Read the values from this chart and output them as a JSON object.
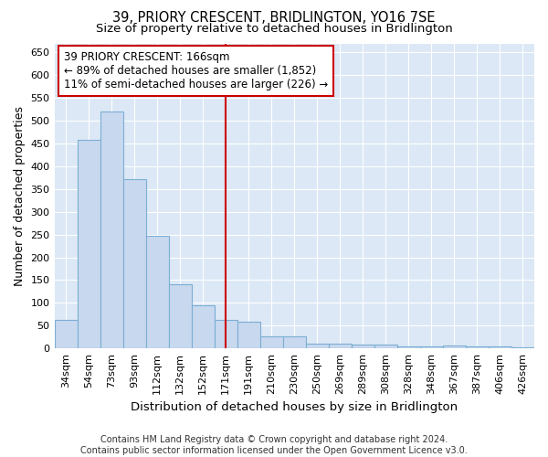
{
  "title": "39, PRIORY CRESCENT, BRIDLINGTON, YO16 7SE",
  "subtitle": "Size of property relative to detached houses in Bridlington",
  "xlabel": "Distribution of detached houses by size in Bridlington",
  "ylabel": "Number of detached properties",
  "categories": [
    "34sqm",
    "54sqm",
    "73sqm",
    "93sqm",
    "112sqm",
    "132sqm",
    "152sqm",
    "171sqm",
    "191sqm",
    "210sqm",
    "230sqm",
    "250sqm",
    "269sqm",
    "289sqm",
    "308sqm",
    "328sqm",
    "348sqm",
    "367sqm",
    "387sqm",
    "406sqm",
    "426sqm"
  ],
  "values": [
    63,
    458,
    520,
    371,
    248,
    140,
    94,
    62,
    58,
    27,
    27,
    11,
    11,
    8,
    8,
    5,
    4,
    7,
    4,
    4,
    3
  ],
  "bar_color": "#c8d8ee",
  "bar_edge_color": "#7bafd4",
  "vline_pos": 7.0,
  "vline_color": "#cc0000",
  "annotation_text": "39 PRIORY CRESCENT: 166sqm\n← 89% of detached houses are smaller (1,852)\n11% of semi-detached houses are larger (226) →",
  "annotation_box_color": "#ffffff",
  "annotation_box_edge": "#cc0000",
  "ylim": [
    0,
    670
  ],
  "yticks": [
    0,
    50,
    100,
    150,
    200,
    250,
    300,
    350,
    400,
    450,
    500,
    550,
    600,
    650
  ],
  "footer": "Contains HM Land Registry data © Crown copyright and database right 2024.\nContains public sector information licensed under the Open Government Licence v3.0.",
  "bg_color": "#ffffff",
  "plot_bg_color": "#dce8f5",
  "title_fontsize": 10.5,
  "subtitle_fontsize": 9.5,
  "tick_fontsize": 8,
  "ylabel_fontsize": 9,
  "xlabel_fontsize": 9.5,
  "footer_fontsize": 7
}
